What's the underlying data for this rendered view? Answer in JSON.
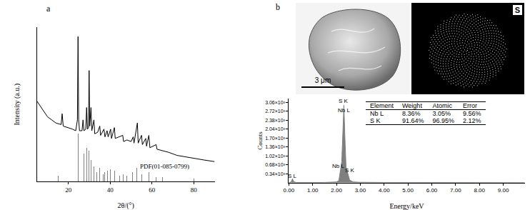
{
  "chart_data": [
    {
      "type": "line",
      "title": "a",
      "x_label": "2θ/(°)",
      "y_label": "Intensity (a.u.)",
      "xlim": [
        5,
        90
      ],
      "xticks": [
        20,
        40,
        60,
        80
      ],
      "ylim": [
        0,
        100
      ],
      "yticks": [],
      "tick_labels": "x",
      "grid": false,
      "series": [
        {
          "type": "line",
          "color": "#000000",
          "x": [
            5,
            8,
            10,
            12,
            14,
            16.5,
            17,
            17.5,
            20,
            22,
            23.5,
            24.3,
            24.6,
            24.9,
            25.3,
            26.5,
            27,
            27.4,
            28.3,
            28.7,
            29.1,
            29.6,
            29.9,
            30.2,
            30.8,
            31.2,
            32.2,
            32.6,
            34,
            35,
            35.4,
            37,
            37.5,
            38.5,
            39,
            40.2,
            40.6,
            42,
            42.4,
            44,
            46,
            46.4,
            48,
            50,
            51,
            51.4,
            53,
            53.4,
            55,
            55.4,
            57,
            57.4,
            58.5,
            59,
            62,
            62.4,
            65,
            68,
            72,
            76,
            80,
            85,
            90
          ],
          "values": [
            52,
            46,
            42,
            40,
            38,
            37,
            44,
            36,
            35,
            34,
            33,
            40,
            94,
            40,
            33,
            33,
            40,
            33,
            34,
            48,
            34,
            35,
            72,
            36,
            48,
            33,
            40,
            31,
            32,
            36,
            30,
            34,
            29,
            33,
            29,
            34,
            28,
            35,
            28,
            29,
            30,
            26,
            27,
            26,
            29,
            25,
            38,
            25,
            30,
            24,
            28,
            23,
            30,
            22,
            24,
            21,
            20,
            19,
            17,
            16,
            15,
            14,
            13
          ]
        },
        {
          "type": "bar",
          "color": "#808080",
          "x": [
            11.5,
            15.2,
            17,
            24.6,
            27.3,
            28.8,
            29.9,
            30.8,
            32.2,
            33.5,
            35,
            36.5,
            37.2,
            38.8,
            40.2,
            42,
            44.5,
            46.3,
            48,
            50.8,
            52.8,
            55,
            57,
            58.6,
            62,
            65,
            71,
            80
          ],
          "values": [
            3,
            4,
            5,
            31,
            18,
            22,
            20,
            14,
            10,
            6,
            9,
            5,
            6,
            7,
            8,
            7,
            4,
            5,
            4,
            6,
            9,
            5,
            4,
            6,
            3,
            3,
            3,
            2
          ]
        }
      ],
      "annotations": [
        {
          "text": "PDF(01-085-0799)",
          "x": 66,
          "y": 10
        }
      ]
    },
    {
      "type": "area",
      "title": "b",
      "x_label": "Energy/keV",
      "y_label": "Counts",
      "xlim": [
        0,
        9.9
      ],
      "xticks": [
        {
          "value": 0,
          "label": "0.00"
        },
        {
          "value": 1,
          "label": "1.00"
        },
        {
          "value": 2,
          "label": "2.00"
        },
        {
          "value": 3,
          "label": "3.00"
        },
        {
          "value": 4,
          "label": "4.00"
        },
        {
          "value": 5,
          "label": "5.00"
        },
        {
          "value": 6,
          "label": "6.00"
        },
        {
          "value": 7,
          "label": "7.00"
        },
        {
          "value": 8,
          "label": "8.00"
        },
        {
          "value": 9,
          "label": "9.00"
        }
      ],
      "ylim": [
        0,
        3200
      ],
      "yticks": [
        {
          "value": 340,
          "label": "0.34×10³"
        },
        {
          "value": 680,
          "label": "0.68×10³"
        },
        {
          "value": 1020,
          "label": "1.02×10³"
        },
        {
          "value": 1360,
          "label": "1.36×10³"
        },
        {
          "value": 1700,
          "label": "1.70×10³"
        },
        {
          "value": 2040,
          "label": "2.04×10³"
        },
        {
          "value": 2380,
          "label": "2.38×10³"
        },
        {
          "value": 2720,
          "label": "2.72×10³"
        },
        {
          "value": 3060,
          "label": "3.06×10³"
        }
      ],
      "grid": false,
      "color": "#7f7f7f",
      "x": [
        0,
        0.1,
        0.15,
        0.2,
        0.3,
        0.5,
        1,
        1.5,
        2.0,
        2.1,
        2.17,
        2.22,
        2.28,
        2.31,
        2.35,
        2.4,
        2.46,
        2.55,
        2.7,
        3,
        4,
        5,
        6,
        7,
        8,
        9,
        9.9
      ],
      "values": [
        0,
        30,
        150,
        40,
        10,
        10,
        5,
        10,
        30,
        80,
        500,
        800,
        2200,
        2950,
        1800,
        600,
        400,
        100,
        30,
        15,
        10,
        8,
        5,
        5,
        4,
        3,
        3
      ],
      "annotations": [
        {
          "text": "S L",
          "x": 0.15,
          "y": 260
        },
        {
          "text": "Nb L",
          "x": 2.08,
          "y": 620
        },
        {
          "text": "S K",
          "x": 2.58,
          "y": 480
        },
        {
          "text": "S K",
          "x": 2.31,
          "y": 3100
        },
        {
          "text": "Nb L",
          "x": 2.31,
          "y": 2760
        }
      ]
    }
  ],
  "sem_image": {
    "scale_bar": "3 μm",
    "map_label": "S"
  },
  "eds_table": {
    "header": [
      "Element",
      "Weight",
      "Atomic",
      "Error"
    ],
    "rows": [
      [
        "Nb L",
        "8.36%",
        "3.05%",
        "9.56%"
      ],
      [
        "S K",
        "91.64%",
        "96.95%",
        "2.12%"
      ]
    ]
  }
}
